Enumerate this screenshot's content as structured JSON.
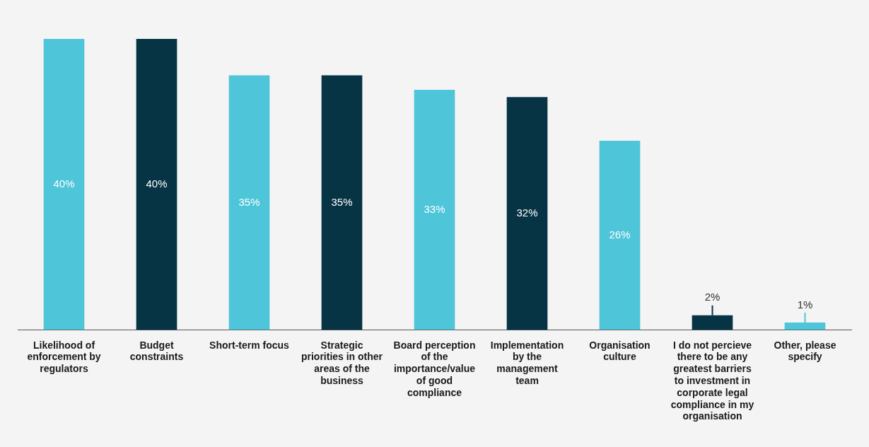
{
  "chart_data": {
    "type": "bar",
    "categories": [
      "Likelihood of enforcement by regulators",
      "Budget constraints",
      "Short-term focus",
      "Strategic priorities in other areas of the business",
      "Board perception of the importance/value of good compliance",
      "Implementation by the management team",
      "Organisation culture",
      "I do not percieve there to be any greatest barriers to investment in corporate legal compliance in my organisation",
      "Other, please specify"
    ],
    "values": [
      40,
      40,
      35,
      35,
      33,
      32,
      26,
      2,
      1
    ],
    "value_labels": [
      "40%",
      "40%",
      "35%",
      "35%",
      "33%",
      "32%",
      "26%",
      "2%",
      "1%"
    ],
    "colors": [
      "#4ec5d8",
      "#063444",
      "#4ec5d8",
      "#063444",
      "#4ec5d8",
      "#063444",
      "#4ec5d8",
      "#063444",
      "#4ec5d8"
    ],
    "ylim": [
      0,
      40
    ],
    "data_labels": true,
    "tick_labels": "x",
    "grid": false
  }
}
